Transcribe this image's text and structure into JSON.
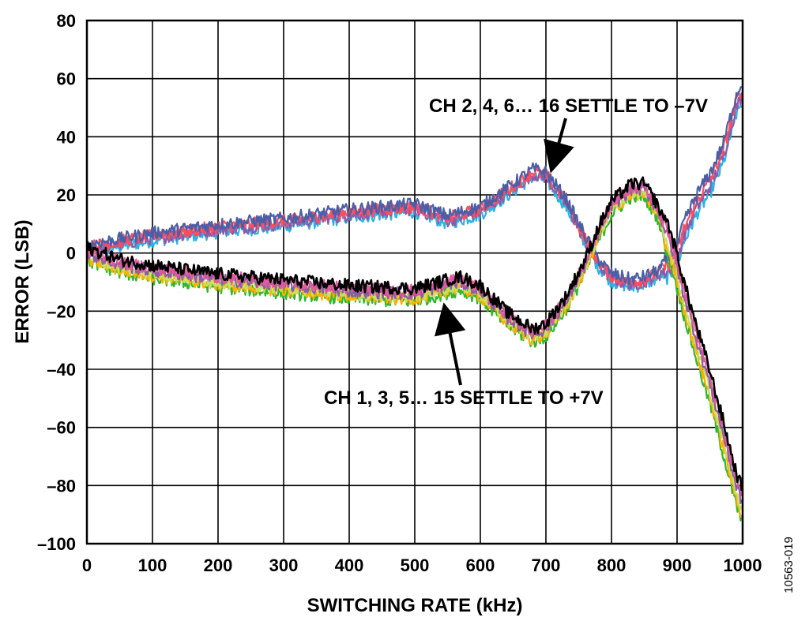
{
  "chart_data": {
    "type": "line",
    "xlabel": "SWITCHING RATE (kHz)",
    "ylabel": "ERROR (LSB)",
    "xlim": [
      0,
      1000
    ],
    "ylim": [
      -100,
      80
    ],
    "xticks": [
      "0",
      "100",
      "200",
      "300",
      "400",
      "500",
      "600",
      "700",
      "800",
      "900",
      "1000"
    ],
    "yticks": [
      "80",
      "60",
      "40",
      "20",
      "0",
      "–20",
      "–40",
      "–60",
      "–80",
      "–100"
    ],
    "grid": true,
    "figure_code": "10563-019",
    "annotations": [
      {
        "text": "CH 2, 4, 6… 16 SETTLE TO –7V",
        "points_to": [
          690,
          29
        ]
      },
      {
        "text": "CH 1, 3, 5… 15 SETTLE TO +7V",
        "points_to": [
          545,
          -19
        ]
      }
    ],
    "series_groups": [
      {
        "group": "even",
        "colors": [
          "#4a5fa8",
          "#2ab3e6",
          "#8e5aa8",
          "#ff4d5e"
        ],
        "x": [
          0,
          50,
          100,
          200,
          300,
          400,
          500,
          550,
          600,
          650,
          680,
          700,
          730,
          760,
          780,
          800,
          830,
          850,
          870,
          890,
          900,
          910,
          930,
          950,
          970,
          990,
          1000
        ],
        "y": [
          2,
          4,
          6,
          9,
          11,
          14,
          16,
          12,
          15,
          23,
          28,
          27,
          18,
          5,
          -3,
          -8,
          -10,
          -9,
          -7,
          -3,
          0,
          8,
          18,
          25,
          35,
          52,
          57
        ]
      },
      {
        "group": "odd",
        "colors": [
          "#000000",
          "#2eb82e",
          "#ffb000",
          "#c8e060",
          "#8e5aa8",
          "#e05aa0"
        ],
        "x": [
          0,
          50,
          100,
          200,
          300,
          400,
          500,
          550,
          570,
          600,
          640,
          680,
          700,
          730,
          760,
          780,
          800,
          830,
          850,
          870,
          890,
          900,
          910,
          930,
          950,
          970,
          990,
          1000
        ],
        "y": [
          0,
          -4,
          -6,
          -9,
          -11,
          -13,
          -14,
          -11,
          -10,
          -13,
          -22,
          -28,
          -26,
          -17,
          -4,
          7,
          16,
          22,
          22,
          15,
          3,
          -5,
          -14,
          -30,
          -45,
          -62,
          -80,
          -86
        ]
      }
    ]
  }
}
